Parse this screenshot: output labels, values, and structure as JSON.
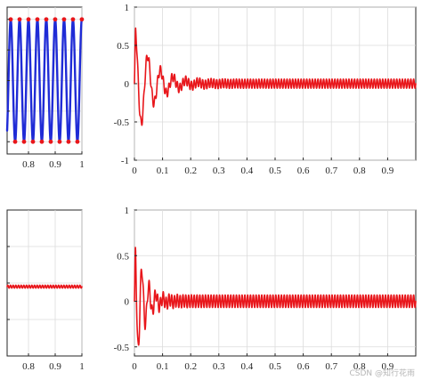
{
  "colors": {
    "red": "#e8161b",
    "blue": "#1f2bd6",
    "axis": "#262626",
    "grid": "#dcdcdc"
  },
  "watermark": "CSDN @知行花雨",
  "chart_data": [
    {
      "id": "top-left",
      "type": "line",
      "title": "",
      "xlabel": "",
      "ylabel": "",
      "xlim": [
        0.72,
        1.0
      ],
      "ylim": [
        -1.2,
        1.2
      ],
      "x_tick_labels": [
        "0.8",
        "0.9",
        "1"
      ],
      "grid": true,
      "series": [
        {
          "kind": "sine",
          "color": "blue",
          "amplitude": 1,
          "period": 0.0333,
          "marker_color": "red"
        }
      ]
    },
    {
      "id": "top-right",
      "type": "line",
      "title": "",
      "xlabel": "",
      "ylabel": "",
      "xlim": [
        0,
        1.0
      ],
      "ylim": [
        -1,
        1
      ],
      "x_tick_labels": [
        "0",
        "0.1",
        "0.2",
        "0.3",
        "0.4",
        "0.5",
        "0.6",
        "0.7",
        "0.8",
        "0.9"
      ],
      "y_tick_labels": [
        "1",
        "0.5",
        "0",
        "-0.5",
        "-1"
      ],
      "grid": true,
      "series": [
        {
          "kind": "damped",
          "color": "red",
          "amplitude": 0.77,
          "decay": 16,
          "period": 0.045,
          "steady_amplitude": 0.06,
          "steady_period": 0.01
        }
      ]
    },
    {
      "id": "bottom-left",
      "type": "line",
      "title": "",
      "xlabel": "",
      "ylabel": "",
      "xlim": [
        0.72,
        1.0
      ],
      "ylim": [
        -1,
        1
      ],
      "x_tick_labels": [
        "0.8",
        "0.9",
        "1"
      ],
      "grid": true,
      "series": [
        {
          "kind": "flat",
          "color": "red",
          "offset": -0.05,
          "ripple": 0.02
        }
      ]
    },
    {
      "id": "bottom-right",
      "type": "line",
      "title": "",
      "xlabel": "",
      "ylabel": "",
      "xlim": [
        0,
        1.0
      ],
      "ylim": [
        -0.6,
        1.0
      ],
      "x_tick_labels": [
        "0",
        "0.1",
        "0.2",
        "0.3",
        "0.4",
        "0.5",
        "0.6",
        "0.7",
        "0.8",
        "0.9"
      ],
      "y_tick_labels": [
        "1",
        "0.5",
        "0",
        "-0.5"
      ],
      "grid": true,
      "series": [
        {
          "kind": "damped",
          "color": "red",
          "amplitude": 0.78,
          "decay": 30,
          "period": 0.025,
          "steady_amplitude": 0.07,
          "steady_period": 0.01
        }
      ]
    }
  ]
}
